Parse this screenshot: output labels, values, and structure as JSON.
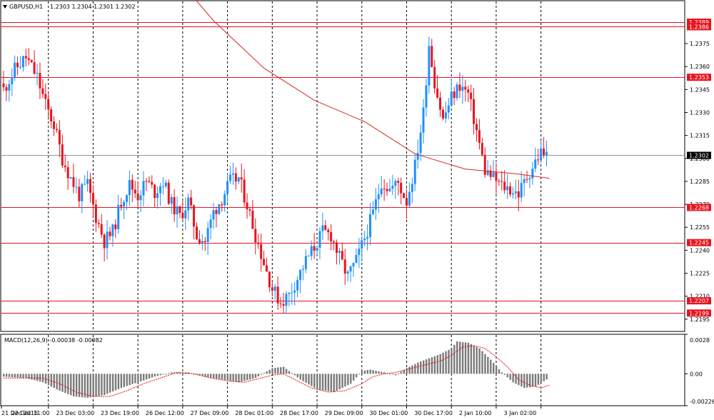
{
  "header": {
    "symbol": "GBPUSD,H1",
    "quote": "1.2303 1.2304 1.2301 1.2302"
  },
  "macd": {
    "label": "MACD(12,26,9) -0.00038 -0.00082",
    "ticks": [
      "0.0028",
      "0.00",
      "-0.00226"
    ]
  },
  "colors": {
    "bull": "#1e90ff",
    "bear": "#e8141e",
    "level_line": "#e8141e",
    "price_line": "#8c9aa8",
    "ma": "#d8261e",
    "histogram": "#7a7a7a",
    "signal": "#e8141e"
  },
  "chart_data": [
    {
      "type": "candlestick",
      "title": "GBPUSD,H1",
      "ylim": [
        1.2187,
        1.2403
      ],
      "y_ticks": [
        "1.2375",
        "1.2360",
        "1.2345",
        "1.2330",
        "1.2315",
        "1.2300",
        "1.2285",
        "1.2270",
        "1.2255",
        "1.2240",
        "1.2225",
        "1.2210",
        "1.2195"
      ],
      "x_labels": [
        "21 Dec 2016",
        "22 Dec 11:00",
        "23 Dec 03:00",
        "23 Dec 19:00",
        "26 Dec 12:00",
        "27 Dec 09:00",
        "28 Dec 01:00",
        "28 Dec 17:00",
        "29 Dec 09:00",
        "30 Dec 01:00",
        "30 Dec 17:00",
        "2 Jan 10:00",
        "3 Jan 02:00"
      ],
      "current_price": "1.2302",
      "levels": [
        "1.2389",
        "1.2386",
        "1.2353",
        "1.2268",
        "1.2245",
        "1.2207",
        "1.2199"
      ],
      "close_path": [
        [
          0,
          1.2345
        ],
        [
          4,
          1.2358
        ],
        [
          8,
          1.2366
        ],
        [
          12,
          1.2353
        ],
        [
          15,
          1.2335
        ],
        [
          18,
          1.2322
        ],
        [
          21,
          1.23
        ],
        [
          24,
          1.2287
        ],
        [
          27,
          1.2276
        ],
        [
          30,
          1.2283
        ],
        [
          33,
          1.2262
        ],
        [
          36,
          1.2246
        ],
        [
          39,
          1.2252
        ],
        [
          42,
          1.2272
        ],
        [
          45,
          1.2283
        ],
        [
          48,
          1.2276
        ],
        [
          51,
          1.2285
        ],
        [
          54,
          1.2278
        ],
        [
          57,
          1.2285
        ],
        [
          60,
          1.227
        ],
        [
          63,
          1.2262
        ],
        [
          66,
          1.2272
        ],
        [
          69,
          1.225
        ],
        [
          72,
          1.2246
        ],
        [
          75,
          1.2265
        ],
        [
          78,
          1.2274
        ],
        [
          81,
          1.2285
        ],
        [
          84,
          1.2287
        ],
        [
          87,
          1.227
        ],
        [
          90,
          1.225
        ],
        [
          93,
          1.2232
        ],
        [
          96,
          1.2215
        ],
        [
          99,
          1.2206
        ],
        [
          102,
          1.2211
        ],
        [
          105,
          1.2222
        ],
        [
          108,
          1.2233
        ],
        [
          111,
          1.2242
        ],
        [
          114,
          1.2252
        ],
        [
          117,
          1.225
        ],
        [
          120,
          1.2235
        ],
        [
          123,
          1.2223
        ],
        [
          126,
          1.2233
        ],
        [
          129,
          1.2248
        ],
        [
          132,
          1.2264
        ],
        [
          135,
          1.2285
        ],
        [
          138,
          1.228
        ],
        [
          141,
          1.2284
        ],
        [
          144,
          1.2272
        ],
        [
          147,
          1.2295
        ],
        [
          150,
          1.233
        ],
        [
          152,
          1.2375
        ],
        [
          154,
          1.235
        ],
        [
          157,
          1.2325
        ],
        [
          160,
          1.234
        ],
        [
          163,
          1.2348
        ],
        [
          166,
          1.2342
        ],
        [
          169,
          1.2318
        ],
        [
          172,
          1.2292
        ],
        [
          175,
          1.2287
        ],
        [
          178,
          1.2282
        ],
        [
          181,
          1.228
        ],
        [
          184,
          1.2277
        ],
        [
          187,
          1.2288
        ],
        [
          190,
          1.2298
        ],
        [
          192,
          1.2304
        ],
        [
          194,
          1.2302
        ]
      ],
      "ma_path": [
        [
          59,
          1.2424
        ],
        [
          75,
          1.239
        ],
        [
          93,
          1.2359
        ],
        [
          111,
          1.2338
        ],
        [
          129,
          1.2324
        ],
        [
          147,
          1.2303
        ],
        [
          165,
          1.2293
        ],
        [
          183,
          1.229
        ],
        [
          195,
          1.2287
        ]
      ]
    },
    {
      "type": "bar",
      "title": "MACD(12,26,9) -0.00038 -0.00082",
      "ylim": [
        -0.00226,
        0.0028
      ],
      "histogram_path": [
        [
          0,
          -0.0002
        ],
        [
          8,
          -0.0003
        ],
        [
          14,
          -0.0006
        ],
        [
          20,
          -0.0012
        ],
        [
          25,
          -0.0016
        ],
        [
          30,
          -0.0017
        ],
        [
          36,
          -0.0015
        ],
        [
          42,
          -0.001
        ],
        [
          48,
          -0.0006
        ],
        [
          54,
          -0.0002
        ],
        [
          60,
          0.0001
        ],
        [
          66,
          0.0001
        ],
        [
          72,
          -0.0002
        ],
        [
          78,
          -0.0004
        ],
        [
          84,
          -0.0006
        ],
        [
          90,
          -0.0003
        ],
        [
          96,
          0.0004
        ],
        [
          100,
          0.0005
        ],
        [
          106,
          -0.0004
        ],
        [
          112,
          -0.0011
        ],
        [
          118,
          -0.0013
        ],
        [
          124,
          -0.0007
        ],
        [
          128,
          0.0002
        ],
        [
          131,
          0.0003
        ],
        [
          136,
          0.0001
        ],
        [
          140,
          -0.0001
        ],
        [
          144,
          0.0004
        ],
        [
          148,
          0.0008
        ],
        [
          152,
          0.0011
        ],
        [
          156,
          0.0014
        ],
        [
          160,
          0.0018
        ],
        [
          162,
          0.0023
        ],
        [
          166,
          0.0022
        ],
        [
          170,
          0.0018
        ],
        [
          174,
          0.001
        ],
        [
          178,
          0.0001
        ],
        [
          182,
          -0.0006
        ],
        [
          186,
          -0.001
        ],
        [
          190,
          -0.0009
        ],
        [
          194,
          -0.0004
        ]
      ],
      "signal_path": [
        [
          0,
          -0.0003
        ],
        [
          14,
          -0.0003
        ],
        [
          20,
          -0.0007
        ],
        [
          26,
          -0.0013
        ],
        [
          32,
          -0.0016
        ],
        [
          38,
          -0.0016
        ],
        [
          44,
          -0.0012
        ],
        [
          50,
          -0.0007
        ],
        [
          56,
          -0.0003
        ],
        [
          62,
          0.0001
        ],
        [
          68,
          0.0
        ],
        [
          74,
          -0.0003
        ],
        [
          80,
          -0.0005
        ],
        [
          86,
          -0.0006
        ],
        [
          92,
          -0.0003
        ],
        [
          96,
          -0.0001
        ],
        [
          100,
          0.0
        ],
        [
          104,
          -0.0004
        ],
        [
          110,
          -0.001
        ],
        [
          116,
          -0.0013
        ],
        [
          122,
          -0.0012
        ],
        [
          128,
          -0.0007
        ],
        [
          132,
          -0.0002
        ],
        [
          136,
          0.0
        ],
        [
          140,
          0.0001
        ],
        [
          146,
          0.0004
        ],
        [
          152,
          0.0007
        ],
        [
          156,
          0.0009
        ],
        [
          160,
          0.0013
        ],
        [
          164,
          0.0019
        ],
        [
          168,
          0.002
        ],
        [
          172,
          0.0018
        ],
        [
          176,
          0.0012
        ],
        [
          180,
          0.0005
        ],
        [
          184,
          -0.0004
        ],
        [
          188,
          -0.0008
        ],
        [
          192,
          -0.001
        ],
        [
          195,
          -0.0008
        ]
      ]
    }
  ]
}
